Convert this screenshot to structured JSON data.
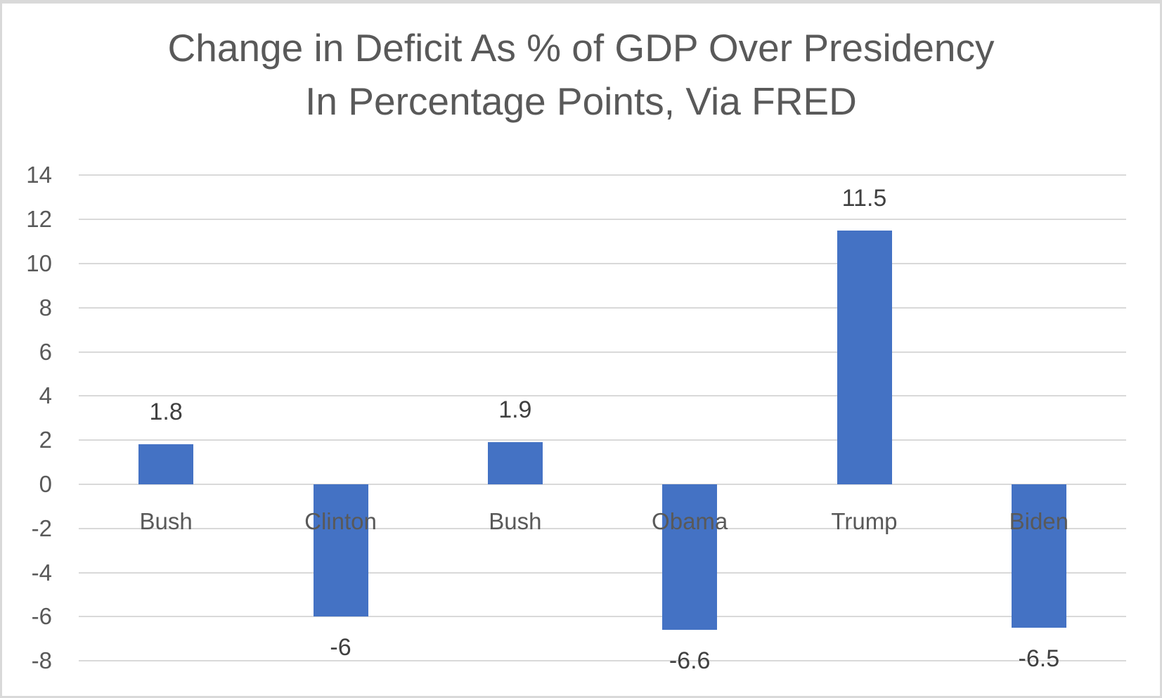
{
  "title": {
    "line1": "Change in Deficit As % of GDP Over Presidency",
    "line2": "In Percentage Points, Via FRED"
  },
  "chart_data": {
    "type": "bar",
    "title": "Change in Deficit As % of GDP Over Presidency In Percentage Points, Via FRED",
    "categories": [
      "Bush",
      "Clinton",
      "Bush",
      "Obama",
      "Trump",
      "Biden"
    ],
    "values": [
      1.8,
      -6,
      1.9,
      -6.6,
      11.5,
      -6.5
    ],
    "value_labels": [
      "1.8",
      "-6",
      "1.9",
      "-6.6",
      "11.5",
      "-6.5"
    ],
    "xlabel": "",
    "ylabel": "",
    "ylim": [
      -8,
      14
    ],
    "yticks": [
      14,
      12,
      10,
      8,
      6,
      4,
      2,
      0,
      -2,
      -4,
      -6,
      -8
    ],
    "grid": true,
    "legend": false,
    "series_name": "",
    "colors": {
      "bar": "#4472c4",
      "gridline": "#d9d9d9",
      "axis_labels": "#595959",
      "category_labels": "#595959",
      "data_labels": "#404040",
      "title": "#595959",
      "frame_border": "#d9d9d9",
      "background": "#ffffff"
    }
  }
}
